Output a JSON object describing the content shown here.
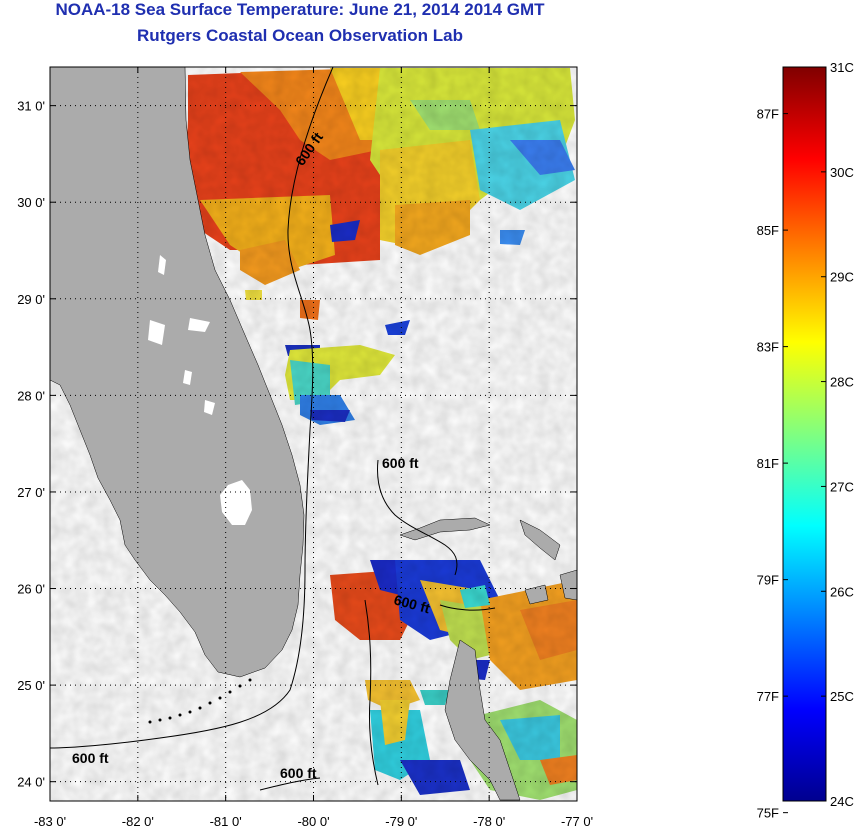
{
  "title": "NOAA-18 Sea Surface Temperature:  June 21, 2014 2014 GMT",
  "subtitle": "Rutgers Coastal Ocean Observation Lab",
  "map": {
    "lon_range": [
      -83,
      -77
    ],
    "lat_range": [
      23.8,
      31.4
    ],
    "lat_ticks": [
      {
        "value": 31,
        "label": "31 0'"
      },
      {
        "value": 30,
        "label": "30 0'"
      },
      {
        "value": 29,
        "label": "29 0'"
      },
      {
        "value": 28,
        "label": "28 0'"
      },
      {
        "value": 27,
        "label": "27 0'"
      },
      {
        "value": 26,
        "label": "26 0'"
      },
      {
        "value": 25,
        "label": "25 0'"
      },
      {
        "value": 24,
        "label": "24 0'"
      }
    ],
    "lon_ticks": [
      {
        "value": -83,
        "label": "-83 0'"
      },
      {
        "value": -82,
        "label": "-82 0'"
      },
      {
        "value": -81,
        "label": "-81 0'"
      },
      {
        "value": -80,
        "label": "-80 0'"
      },
      {
        "value": -79,
        "label": "-79 0'"
      },
      {
        "value": -78,
        "label": "-78 0'"
      },
      {
        "value": -77,
        "label": "-77 0'"
      }
    ],
    "grid": "dotted",
    "contour_labels": [
      "600 ft",
      "600 ft",
      "600 ft",
      "600 ft"
    ],
    "land_color": "#ababab"
  },
  "colorbar": {
    "range_c": [
      24,
      31
    ],
    "celsius_ticks": [
      {
        "value": 31,
        "label": "31C"
      },
      {
        "value": 30,
        "label": "30C"
      },
      {
        "value": 29,
        "label": "29C"
      },
      {
        "value": 28,
        "label": "28C"
      },
      {
        "value": 27,
        "label": "27C"
      },
      {
        "value": 26,
        "label": "26C"
      },
      {
        "value": 25,
        "label": "25C"
      },
      {
        "value": 24,
        "label": "24C"
      }
    ],
    "fahrenheit_ticks": [
      {
        "value": 87,
        "label": "87F"
      },
      {
        "value": 85,
        "label": "85F"
      },
      {
        "value": 83,
        "label": "83F"
      },
      {
        "value": 81,
        "label": "81F"
      },
      {
        "value": 79,
        "label": "79F"
      },
      {
        "value": 77,
        "label": "77F"
      },
      {
        "value": 75,
        "label": "75F"
      }
    ],
    "colormap": [
      "#00008f",
      "#0000ff",
      "#0080ff",
      "#00ffff",
      "#80ff80",
      "#ffff00",
      "#ff8000",
      "#ff0000",
      "#800000"
    ]
  }
}
